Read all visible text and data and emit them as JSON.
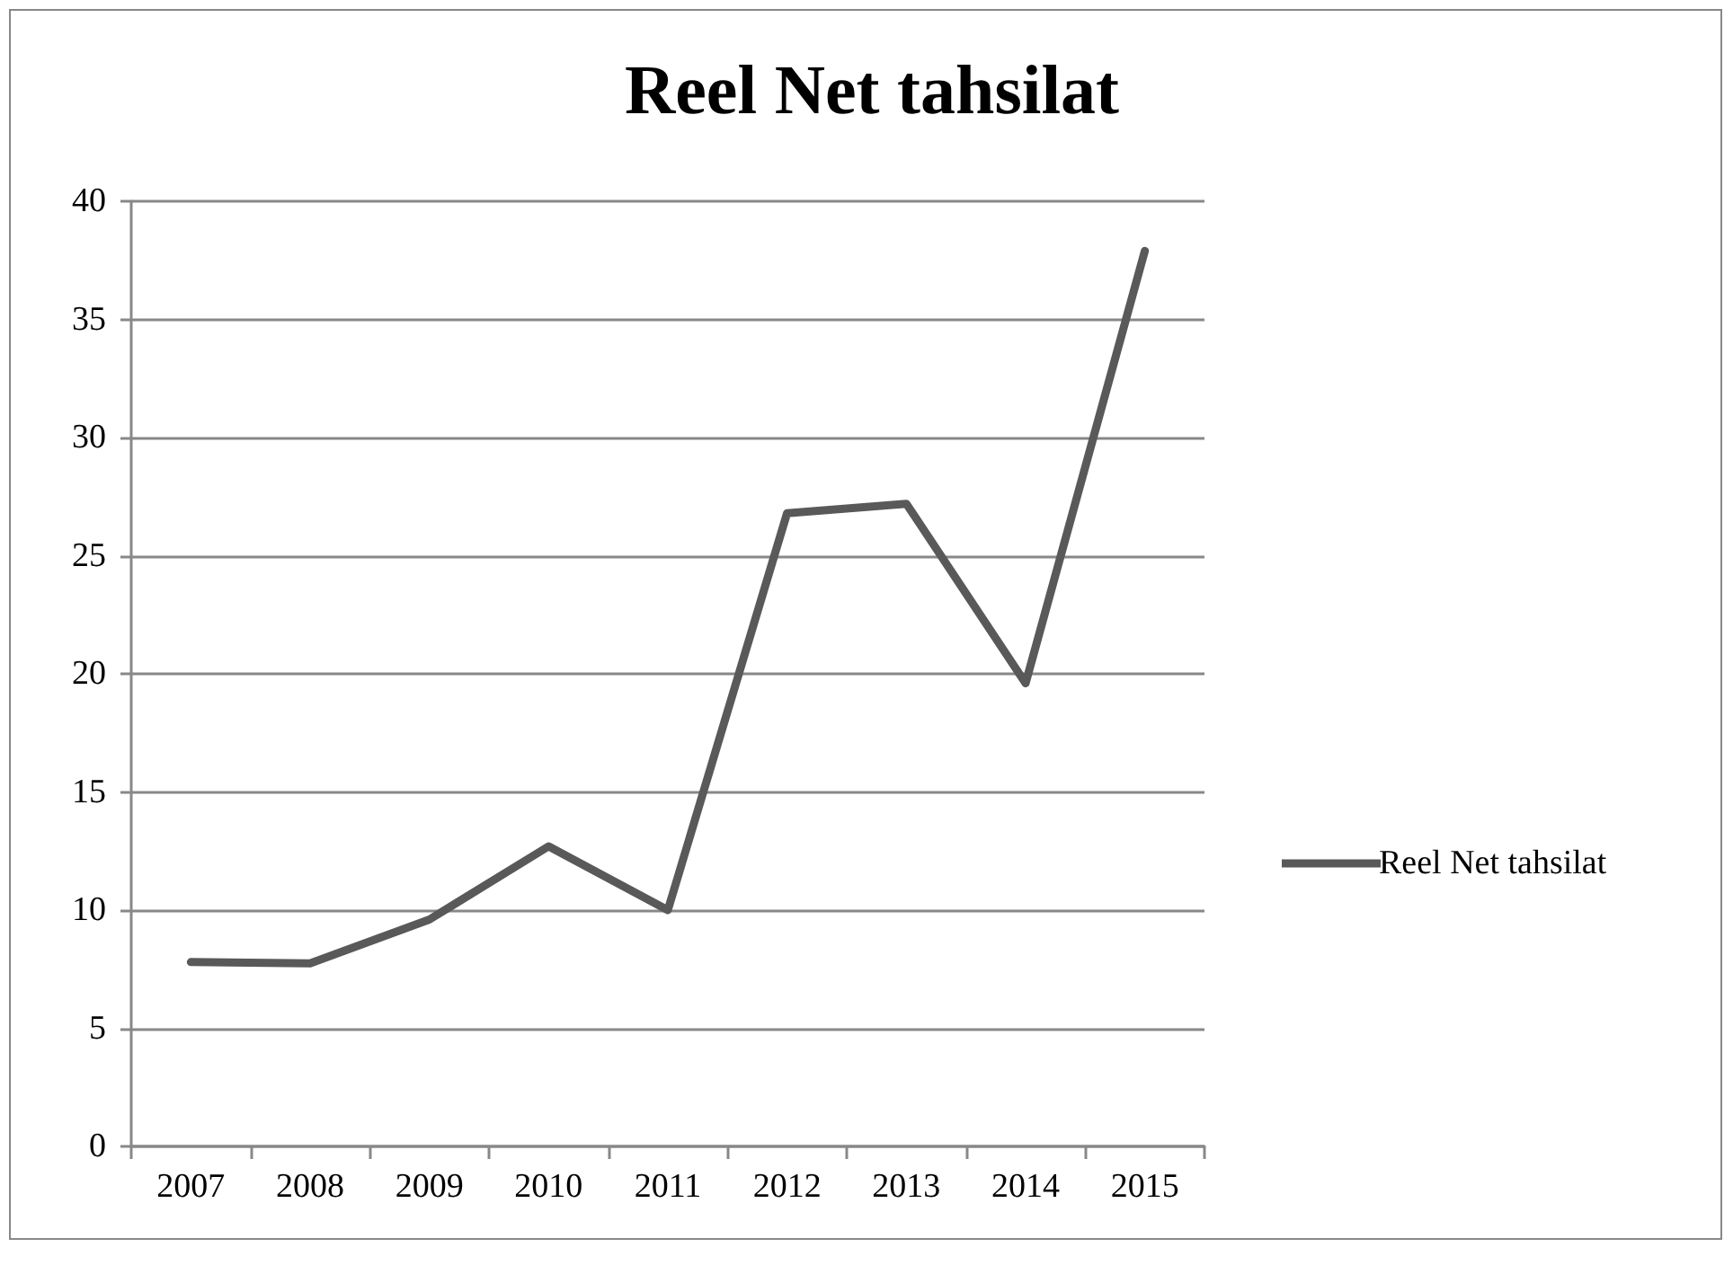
{
  "chart_data": {
    "type": "line",
    "title": "Reel Net tahsilat",
    "categories": [
      "2007",
      "2008",
      "2009",
      "2010",
      "2011",
      "2012",
      "2013",
      "2014",
      "2015"
    ],
    "series": [
      {
        "name": "Reel Net tahsilat",
        "color": "#595959",
        "values": [
          7.8,
          7.75,
          9.6,
          12.7,
          10.0,
          26.8,
          27.2,
          19.6,
          37.9
        ]
      }
    ],
    "ylim": [
      0,
      40
    ],
    "yticks": [
      0,
      5,
      10,
      15,
      20,
      25,
      30,
      35,
      40
    ],
    "grid": "y",
    "legend": "right",
    "marker": "none",
    "line_style": "solid"
  }
}
